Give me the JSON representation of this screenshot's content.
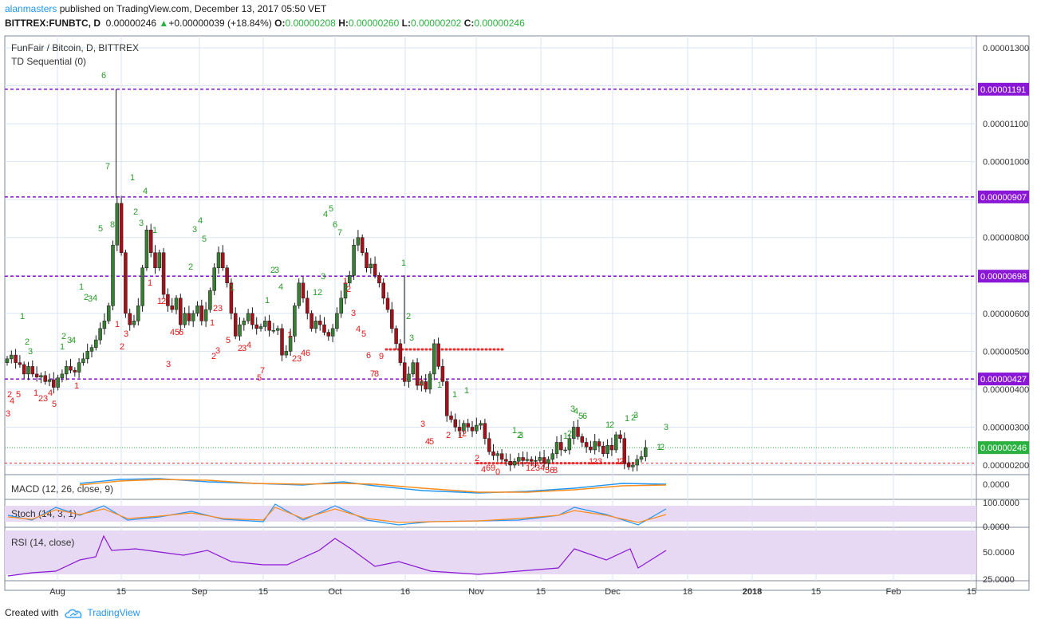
{
  "header": {
    "user": "alanmasters",
    "published_text": " published on TradingView.com, December 13, 2017 05:50 VET",
    "symbol": "BITTREX:FUNBTC, D",
    "last": "0.00000246",
    "change_icon": "up-triangle-icon",
    "change": "+0.00000039 (+18.84%)",
    "o_label": "O:",
    "o": "0.00000208",
    "h_label": "H:",
    "h": "0.00000260",
    "l_label": "L:",
    "l": "0.00000202",
    "c_label": "C:",
    "c": "0.00000246"
  },
  "footer": {
    "created_with": "Created with",
    "brand": "TradingView",
    "logo_icon": "tradingview-cloud-icon"
  },
  "colors": {
    "up": "#3a7d35",
    "down": "#a4111a",
    "level": "#8a16d6",
    "support": "#ef2b2b",
    "grid": "#dbe4f2",
    "td_up": "#2a9a2a",
    "td_down": "#e01a1a",
    "pane_fill": "#e7d9f3"
  },
  "chart_data": {
    "type": "candlestick",
    "title": "FunFair / Bitcoin, D, BITTREX",
    "indicator": "TD Sequential (0)",
    "price_axis": {
      "ticks": [
        "0.00001300",
        "0.00001100",
        "0.00001000",
        "0.00000800",
        "0.00000600",
        "0.00000500",
        "0.00000400",
        "0.00000300",
        "0.00000200"
      ],
      "tick_values": [
        1300,
        1100,
        1000,
        800,
        600,
        500,
        400,
        300,
        200
      ],
      "unit_scale": "1e-8 BTC",
      "range": [
        170,
        1340
      ]
    },
    "time_axis": {
      "labels": [
        "Aug",
        "15",
        "Sep",
        "15",
        "Oct",
        "16",
        "Nov",
        "15",
        "Dec",
        "18",
        "2018",
        "15",
        "Feb",
        "15"
      ]
    },
    "level_lines": [
      {
        "value": 1191,
        "label": "0.00001191"
      },
      {
        "value": 907,
        "label": "0.00000907"
      },
      {
        "value": 698,
        "label": "0.00000698"
      },
      {
        "value": 427,
        "label": "0.00000427"
      }
    ],
    "last_price": {
      "value": 246,
      "label": "0.00000246"
    },
    "td_support_values": [
      505,
      205
    ],
    "candles_close": [
      480,
      490,
      470,
      465,
      440,
      460,
      440,
      432,
      436,
      420,
      425,
      405,
      430,
      440,
      460,
      450,
      445,
      470,
      480,
      500,
      510,
      530,
      560,
      580,
      620,
      780,
      890,
      760,
      600,
      570,
      580,
      620,
      720,
      820,
      760,
      720,
      760,
      650,
      620,
      610,
      640,
      570,
      600,
      580,
      600,
      620,
      580,
      610,
      660,
      720,
      760,
      720,
      680,
      600,
      540,
      570,
      580,
      600,
      570,
      560,
      565,
      580,
      555,
      555,
      560,
      490,
      500,
      540,
      620,
      680,
      640,
      600,
      560,
      580,
      570,
      550,
      540,
      560,
      600,
      640,
      680,
      700,
      780,
      800,
      760,
      720,
      730,
      700,
      680,
      640,
      610,
      560,
      520,
      470,
      420,
      440,
      470,
      410,
      420,
      400,
      440,
      520,
      460,
      420,
      330,
      320,
      300,
      290,
      310,
      300,
      290,
      305,
      310,
      270,
      235,
      225,
      230,
      215,
      210,
      200,
      210,
      220,
      212,
      215,
      210,
      212,
      220,
      205,
      215,
      230,
      260,
      240,
      240,
      270,
      300,
      275,
      260,
      248,
      240,
      262,
      250,
      230,
      252,
      240,
      280,
      270,
      205,
      195,
      200,
      215,
      222,
      246
    ],
    "td_counts_visible": [
      "1",
      "2",
      "3",
      "4",
      "5",
      "6",
      "7",
      "8",
      "9"
    ],
    "panes": [
      {
        "name": "MACD (12, 26, close, 9)",
        "ticks": [
          "0.0000"
        ]
      },
      {
        "name": "Stoch (14, 3, 1)",
        "ticks": [
          "100.0000",
          "0.0000"
        ]
      },
      {
        "name": "RSI (14, close)",
        "ticks": [
          "50.0000",
          "25.0000"
        ]
      }
    ]
  }
}
